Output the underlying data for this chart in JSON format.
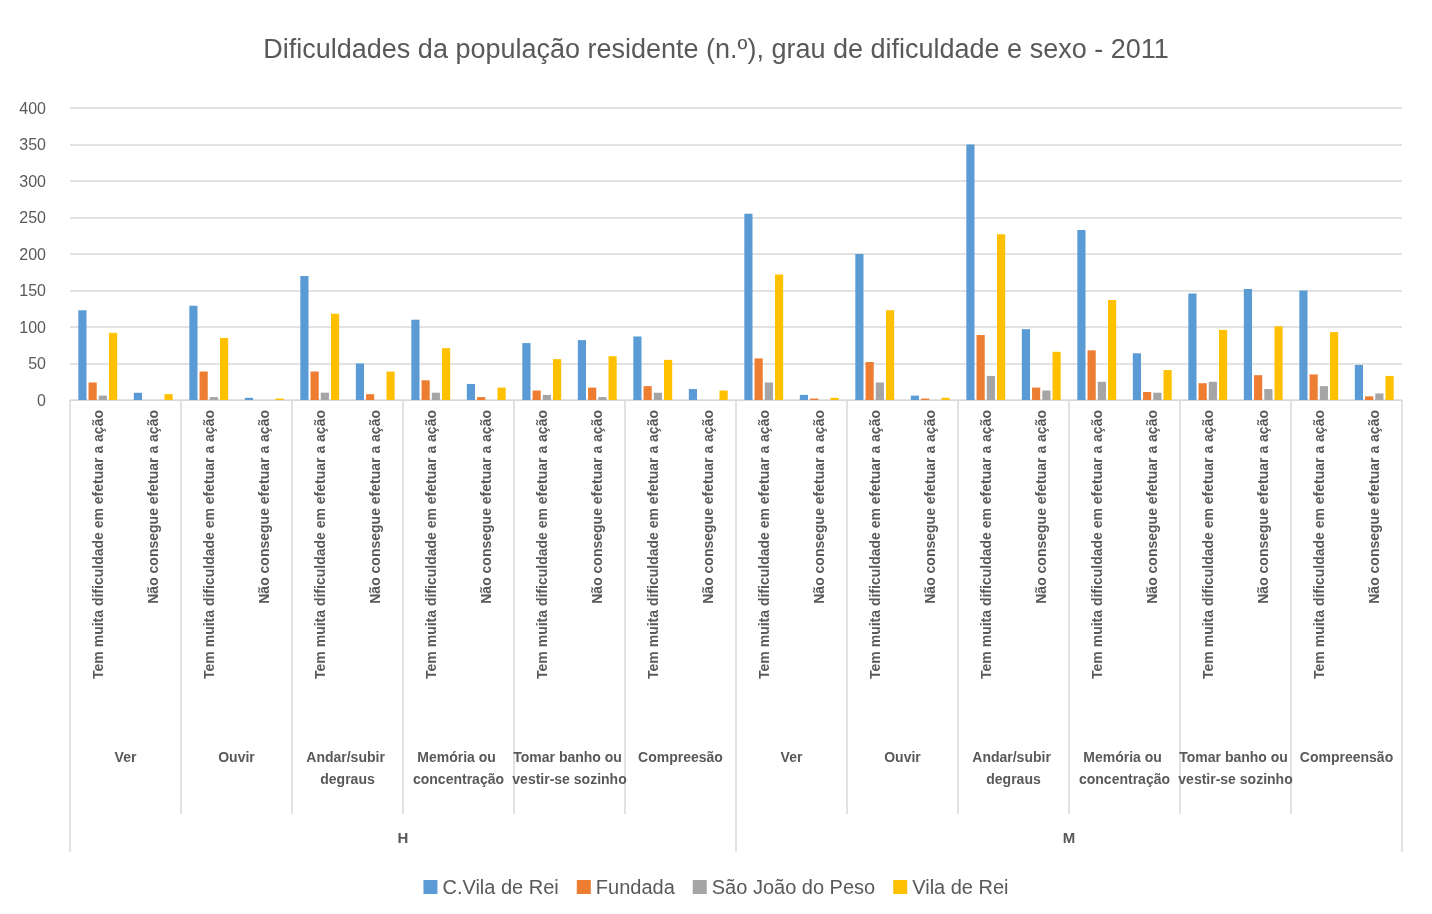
{
  "chart_data": {
    "type": "bar",
    "title": "Dificuldades da população residente (n.º), grau de dificuldade e sexo - 2011",
    "categories": [
      "Tem muita dificuldade em efetuar a ação",
      "Não consegue efetuar a ação",
      "Tem muita dificuldade em efetuar a ação",
      "Não consegue efetuar a ação",
      "Tem muita dificuldade em efetuar a ação",
      "Não consegue efetuar a ação",
      "Tem muita dificuldade em efetuar a ação",
      "Não consegue efetuar a ação",
      "Tem muita dificuldade em efetuar a ação",
      "Não consegue efetuar a ação",
      "Tem muita dificuldade em efetuar a ação",
      "Não consegue efetuar a ação",
      "Tem muita dificuldade em efetuar a ação",
      "Não consegue efetuar a ação",
      "Tem muita dificuldade em efetuar a ação",
      "Não consegue efetuar a ação",
      "Tem muita dificuldade em efetuar a ação",
      "Não consegue efetuar a ação",
      "Tem muita dificuldade em efetuar a ação",
      "Não consegue efetuar a ação",
      "Tem muita dificuldade em efetuar a ação",
      "Não consegue efetuar a ação",
      "Tem muita dificuldade em efetuar a ação",
      "Não consegue efetuar a ação"
    ],
    "series": [
      {
        "name": "C.Vila de Rei",
        "color": "#5b9bd5",
        "values": [
          123,
          10,
          129,
          3,
          170,
          50,
          110,
          22,
          78,
          82,
          87,
          15,
          255,
          7,
          200,
          6,
          350,
          97,
          233,
          64,
          146,
          152,
          150,
          48
        ]
      },
      {
        "name": "Fundada",
        "color": "#ed7d31",
        "values": [
          24,
          0,
          39,
          0,
          39,
          8,
          27,
          4,
          13,
          17,
          19,
          0,
          57,
          2,
          52,
          2,
          89,
          17,
          68,
          11,
          23,
          34,
          35,
          5
        ]
      },
      {
        "name": "São João do Peso",
        "color": "#a5a5a5",
        "values": [
          6,
          null,
          4,
          0,
          10,
          null,
          10,
          null,
          7,
          4,
          10,
          0,
          24,
          0,
          24,
          0,
          33,
          13,
          25,
          10,
          25,
          15,
          19,
          9
        ]
      },
      {
        "name": "Vila de Rei",
        "color": "#ffc000",
        "values": [
          92,
          8,
          85,
          2,
          118,
          39,
          71,
          17,
          56,
          60,
          55,
          13,
          172,
          3,
          123,
          3,
          227,
          66,
          137,
          41,
          96,
          101,
          93,
          33
        ]
      }
    ],
    "annotations": [
      "Ver",
      "Ouvir",
      "Andar/subir degraus",
      "Memória ou concentração",
      "Tomar banho ou vestir-se sozinho",
      "Compreesão",
      "Ver",
      "Ouvir",
      "Andar/subir degraus",
      "Memória ou concentração",
      "Tomar banho ou vestir-se sozinho",
      "Compreensão",
      "H",
      "M"
    ],
    "ylim": [
      0,
      400
    ],
    "yticks": [
      0,
      50,
      100,
      150,
      200,
      250,
      300,
      350,
      400
    ],
    "grid": "y",
    "legend": "bottom"
  }
}
